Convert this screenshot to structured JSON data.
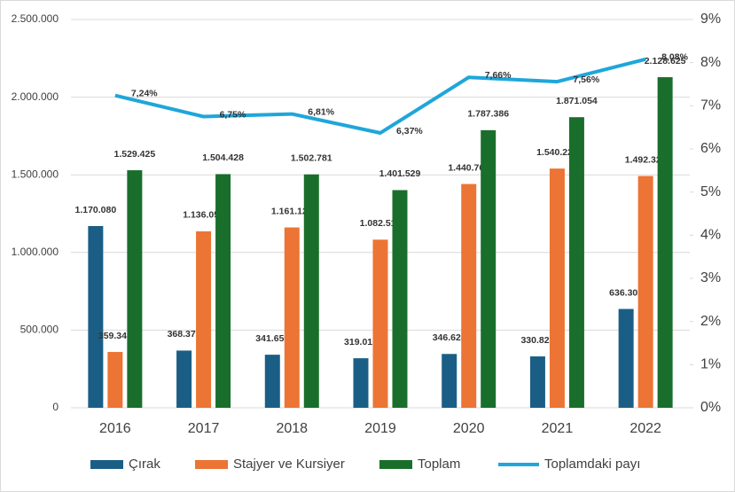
{
  "chart_data": {
    "type": "bar_line",
    "categories": [
      "2016",
      "2017",
      "2018",
      "2019",
      "2020",
      "2021",
      "2022"
    ],
    "series": [
      {
        "name": "Çırak",
        "type": "bar",
        "color": "#1b5e85",
        "values": [
          1170080,
          368373,
          341659,
          319017,
          346624,
          330828,
          636302
        ],
        "value_labels": [
          "1.170.080",
          "368.373",
          "341.659",
          "319.017",
          "346.624",
          "330.828",
          "636.302"
        ]
      },
      {
        "name": "Stajyer ve Kursiyer",
        "type": "bar",
        "color": "#ec7434",
        "values": [
          359345,
          1136055,
          1161122,
          1082512,
          1440762,
          1540226,
          1492323
        ],
        "value_labels": [
          "359.345",
          "1.136.055",
          "1.161.122",
          "1.082.512",
          "1.440.762",
          "1.540.226",
          "1.492.323"
        ]
      },
      {
        "name": "Toplam",
        "type": "bar",
        "color": "#1a6e2b",
        "values": [
          1529425,
          1504428,
          1502781,
          1401529,
          1787386,
          1871054,
          2128625
        ],
        "value_labels": [
          "1.529.425",
          "1.504.428",
          "1.502.781",
          "1.401.529",
          "1.787.386",
          "1.871.054",
          "2.128.625"
        ]
      },
      {
        "name": "Toplamdaki payı",
        "type": "line",
        "axis": "y2",
        "color": "#1fa6da",
        "values": [
          7.24,
          6.75,
          6.81,
          6.37,
          7.66,
          7.56,
          8.08
        ],
        "value_labels": [
          "7,24%",
          "6,75%",
          "6,81%",
          "6,37%",
          "7,66%",
          "7,56%",
          "8,08%"
        ]
      }
    ],
    "ylim": [
      0,
      2500000
    ],
    "yticks": [
      0,
      {
        "value": 500000,
        "label": "500.000"
      },
      {
        "value": 1000000,
        "label": "1.000.000"
      },
      {
        "value": 1500000,
        "label": "1.500.000"
      },
      {
        "value": 2000000,
        "label": "2.000.000"
      },
      {
        "value": 2500000,
        "label": "2.500.000"
      }
    ],
    "y2lim": [
      0,
      9
    ],
    "y2ticks": [
      {
        "value": 0,
        "label": "0%"
      },
      {
        "value": 1,
        "label": "1%"
      },
      {
        "value": 2,
        "label": "2%"
      },
      {
        "value": 3,
        "label": "3%"
      },
      {
        "value": 4,
        "label": "4%"
      },
      {
        "value": 5,
        "label": "5%"
      },
      {
        "value": 6,
        "label": "6%"
      },
      {
        "value": 7,
        "label": "7%"
      },
      {
        "value": 8,
        "label": "8%"
      },
      {
        "value": 9,
        "label": "9%"
      }
    ],
    "legend": "bottom"
  }
}
